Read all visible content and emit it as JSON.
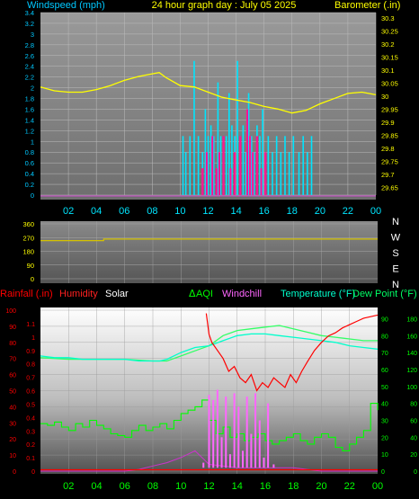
{
  "title": "24 hour graph day : July 05 2025",
  "colors": {
    "background": "#000000",
    "wind_axis": "#00c8ff",
    "baro_axis": "#ffff00",
    "baro_line": "#ffff00",
    "wind_speed": "#00e5ff",
    "wind_gust": "#ff1493",
    "dir_line": "#d4c200",
    "rain": "#ff0000",
    "humidity": "#ff0000",
    "solar": "#ffffff",
    "aqi": "#00ff00",
    "windchill": "#ff66ff",
    "temperature": "#00ffcc",
    "dewpoint": "#33ff66",
    "x_ticks": "#00e5ff"
  },
  "chart_data": [
    {
      "type": "line",
      "panel": "wind-barometer",
      "left_label": "Windspeed (mph)",
      "right_label": "Barometer (.in)",
      "x_ticks": [
        "02",
        "04",
        "06",
        "08",
        "10",
        "12",
        "14",
        "16",
        "18",
        "20",
        "22",
        "00"
      ],
      "left_ticks": [
        "3.4",
        "3.2",
        "3",
        "2.8",
        "2.6",
        "2.4",
        "2.2",
        "2",
        "1.8",
        "1.6",
        "1.4",
        "1.2",
        "1",
        "0.8",
        "0.6",
        "0.4",
        "0.2",
        "0"
      ],
      "right_ticks": [
        "30.3",
        "30.25",
        "30.2",
        "30.15",
        "30.1",
        "30.05",
        "30",
        "29.95",
        "29.9",
        "29.85",
        "29.8",
        "29.75",
        "29.7",
        "29.65"
      ],
      "ylim_left": [
        0,
        3.4
      ],
      "ylim_right": [
        29.62,
        30.32
      ],
      "series": [
        {
          "name": "Barometer",
          "axis": "right",
          "x": [
            0,
            1,
            2,
            3,
            4,
            5,
            6,
            7,
            8,
            8.5,
            9,
            10,
            11,
            12,
            13,
            14,
            15,
            16,
            17,
            18,
            19,
            20,
            21,
            22,
            23,
            24
          ],
          "y": [
            30.035,
            30.02,
            30.015,
            30.015,
            30.025,
            30.04,
            30.06,
            30.075,
            30.085,
            30.09,
            30.07,
            30.04,
            30.035,
            30.015,
            29.995,
            29.985,
            29.975,
            29.96,
            29.95,
            29.935,
            29.945,
            29.97,
            29.99,
            30.01,
            30.015,
            30.005
          ]
        },
        {
          "name": "Wind Speed",
          "axis": "left",
          "x": [
            10.2,
            10.4,
            10.7,
            11.0,
            11.3,
            11.6,
            11.8,
            12.0,
            12.2,
            12.4,
            12.7,
            12.9,
            13.1,
            13.3,
            13.5,
            13.7,
            13.9,
            14.1,
            14.3,
            14.5,
            14.7,
            14.9,
            15.1,
            15.3,
            15.5,
            15.7,
            15.9,
            16.1,
            16.3,
            16.6,
            16.9,
            17.2,
            17.5,
            17.8,
            18.1,
            18.5,
            18.8,
            19.1,
            19.4
          ],
          "y": [
            1.1,
            0.8,
            1.1,
            2.5,
            1.1,
            0.8,
            1.6,
            1.1,
            1.3,
            1.1,
            2.1,
            1.1,
            0.8,
            1.1,
            1.9,
            1.3,
            1.1,
            2.5,
            1.1,
            1.3,
            0.8,
            1.9,
            1.1,
            0.8,
            1.3,
            1.1,
            1.6,
            0.8,
            1.1,
            0.8,
            1.1,
            0.8,
            1.1,
            0.8,
            1.1,
            0.8,
            1.1,
            0.8,
            1.1
          ]
        },
        {
          "name": "Wind Gust",
          "axis": "left",
          "x": [
            11.6,
            11.9,
            12.3,
            12.6,
            12.8,
            13.1,
            13.6,
            13.9,
            14.3,
            14.8,
            15.0,
            15.2,
            15.5,
            15.8,
            16.1
          ],
          "y": [
            0.5,
            0.8,
            1.1,
            0.5,
            0.8,
            1.1,
            0.5,
            0.8,
            1.1,
            1.6,
            1.1,
            0.8,
            1.1,
            0.5,
            0.8
          ]
        }
      ]
    },
    {
      "type": "line",
      "panel": "wind-direction",
      "left_ticks": [
        "360",
        "270",
        "180",
        "90",
        "0"
      ],
      "right_labels": [
        "N",
        "W",
        "S",
        "E",
        "N"
      ],
      "ylim": [
        0,
        360
      ],
      "series": [
        {
          "name": "Wind Direction",
          "x": [
            0,
            4.5,
            4.5,
            24
          ],
          "y": [
            250,
            250,
            260,
            260
          ]
        }
      ]
    },
    {
      "type": "line",
      "panel": "temperature",
      "legend": [
        "Rainfall (.in)",
        "Humidity",
        "Solar",
        "AQI",
        "Windchill",
        "Temperature (°F)",
        "Dew Point (°F)"
      ],
      "x_ticks": [
        "02",
        "04",
        "06",
        "08",
        "10",
        "12",
        "14",
        "16",
        "18",
        "20",
        "22",
        "00"
      ],
      "left_ticks": [
        "100",
        "90",
        "80",
        "70",
        "60",
        "50",
        "40",
        "30",
        "20",
        "10",
        "0"
      ],
      "rain_ticks": [
        "1.1",
        "1",
        "0.9",
        "0.8",
        "0.7",
        "0.6",
        "0.5",
        "0.4",
        "0.3",
        "0.2",
        "0.1",
        "0"
      ],
      "right_ticks_a": [
        "90",
        "80",
        "70",
        "60",
        "50",
        "40",
        "30",
        "20",
        "10",
        "0"
      ],
      "right_ticks_b": [
        "180",
        "160",
        "140",
        "120",
        "100",
        "80",
        "60",
        "40",
        "20",
        "0"
      ],
      "ylim_left": [
        0,
        100
      ],
      "ylim_right": [
        0,
        95
      ],
      "ylim_rain": [
        0,
        1.2
      ],
      "series": [
        {
          "name": "Humidity",
          "axis": "left",
          "x": [
            11.8,
            12,
            12.2,
            12.6,
            13,
            13.4,
            13.8,
            14.2,
            14.6,
            15,
            15.4,
            15.8,
            16.2,
            16.6,
            17,
            17.4,
            17.8,
            18.2,
            18.6,
            19,
            19.5,
            20,
            20.5,
            21,
            21.5,
            22,
            22.5,
            23,
            23.5,
            24
          ],
          "y": [
            98,
            85,
            80,
            75,
            70,
            62,
            65,
            58,
            55,
            60,
            50,
            55,
            52,
            58,
            55,
            52,
            60,
            55,
            62,
            68,
            75,
            80,
            84,
            86,
            89,
            91,
            93,
            95,
            96,
            97
          ]
        },
        {
          "name": "Temperature",
          "axis": "right",
          "x": [
            0,
            1,
            2,
            3,
            4,
            5,
            6,
            7,
            8,
            8.5,
            9,
            10,
            11,
            12,
            13,
            14,
            15,
            16,
            17,
            18,
            19,
            20,
            21,
            22,
            23,
            24
          ],
          "y": [
            68,
            67,
            67,
            66,
            66,
            66,
            66,
            65,
            65,
            65,
            66,
            70,
            73,
            74,
            77,
            80,
            81,
            81,
            80,
            79,
            78,
            77,
            76,
            74,
            73,
            72
          ]
        },
        {
          "name": "Dew Point",
          "axis": "right",
          "x": [
            0,
            2,
            4,
            6,
            8,
            9,
            10,
            11,
            12,
            13,
            14,
            15,
            16,
            17,
            18,
            19,
            20,
            21,
            22,
            23,
            24
          ],
          "y": [
            67,
            66,
            66,
            66,
            65,
            65,
            68,
            71,
            74,
            80,
            83,
            84,
            85,
            86,
            84,
            82,
            80,
            79,
            78,
            77,
            77
          ]
        },
        {
          "name": "AQI",
          "axis": "right",
          "x": [
            0,
            0.5,
            1,
            1.5,
            2,
            2.5,
            3,
            3.5,
            4,
            4.5,
            5,
            5.5,
            6,
            6.5,
            7,
            7.5,
            8,
            8.5,
            9,
            9.5,
            10,
            10.5,
            11,
            11.5,
            12,
            12.5,
            13,
            13.5,
            14,
            14.5,
            15,
            15.5,
            16,
            16.5,
            17,
            17.5,
            18,
            18.5,
            19,
            19.5,
            20,
            20.5,
            21,
            21.5,
            22,
            22.5,
            23,
            23.5,
            24
          ],
          "y": [
            28,
            27,
            29,
            26,
            24,
            28,
            26,
            30,
            27,
            25,
            22,
            21,
            20,
            24,
            27,
            24,
            26,
            28,
            25,
            30,
            34,
            36,
            38,
            42,
            30,
            22,
            26,
            20,
            22,
            18,
            20,
            22,
            18,
            16,
            18,
            20,
            22,
            18,
            16,
            20,
            22,
            20,
            14,
            12,
            16,
            20,
            24,
            40,
            36
          ]
        },
        {
          "name": "Windchill",
          "axis": "right",
          "x": [
            11.2,
            11.6,
            12,
            12.3,
            12.6,
            12.9,
            13.2,
            13.5,
            13.8,
            14.1,
            14.4,
            14.7,
            15,
            15.3,
            15.6,
            15.9,
            16.2,
            16.6
          ],
          "y": [
            2,
            5,
            45,
            42,
            48,
            20,
            44,
            10,
            46,
            38,
            12,
            44,
            22,
            46,
            30,
            8,
            40,
            4
          ]
        },
        {
          "name": "Solar",
          "axis": "right",
          "x": [
            0,
            6,
            7,
            8,
            9,
            10,
            11,
            12,
            13,
            14,
            15,
            16,
            17,
            18,
            19,
            20,
            24
          ],
          "y": [
            0,
            0,
            1,
            3,
            5,
            8,
            12,
            4,
            3,
            2,
            2,
            2,
            2,
            2,
            1,
            0,
            0
          ]
        },
        {
          "name": "Rainfall",
          "axis": "rain",
          "x": [
            0,
            24
          ],
          "y": [
            0.01,
            0.01
          ]
        }
      ]
    }
  ]
}
